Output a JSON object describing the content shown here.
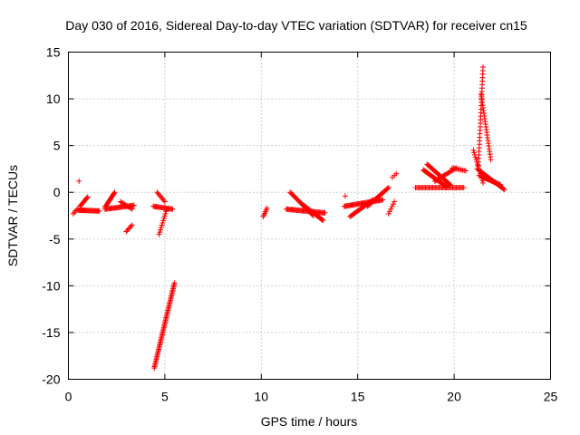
{
  "chart_data": {
    "type": "scatter",
    "title": "Day 030 of 2016, Sidereal Day-to-day VTEC variation (SDTVAR) for receiver cn15",
    "xlabel": "GPS time / hours",
    "ylabel": "SDTVAR / TECUs",
    "xlim": [
      0,
      25
    ],
    "ylim": [
      -20,
      15
    ],
    "xticks": [
      0,
      5,
      10,
      15,
      20,
      25
    ],
    "yticks": [
      15,
      10,
      5,
      0,
      -5,
      -10,
      -15,
      -20
    ],
    "grid": true,
    "marker": "+",
    "color": "#ff0000",
    "segments": [
      {
        "x0": 0.25,
        "x1": 0.45,
        "y0": -2.3,
        "y1": -1.8,
        "n": 4
      },
      {
        "x0": 0.55,
        "x1": 0.6,
        "y0": 1.2,
        "y1": 1.2,
        "n": 1
      },
      {
        "x0": 0.5,
        "x1": 1.6,
        "y0": -1.9,
        "y1": -2.0,
        "n": 25
      },
      {
        "x0": 0.6,
        "x1": 1.0,
        "y0": -1.5,
        "y1": -0.5,
        "n": 10
      },
      {
        "x0": 1.9,
        "x1": 2.4,
        "y0": -1.6,
        "y1": 0.0,
        "n": 16
      },
      {
        "x0": 1.9,
        "x1": 3.4,
        "y0": -1.8,
        "y1": -1.4,
        "n": 30
      },
      {
        "x0": 2.7,
        "x1": 3.3,
        "y0": -1.0,
        "y1": -1.8,
        "n": 10
      },
      {
        "x0": 3.0,
        "x1": 3.3,
        "y0": -4.2,
        "y1": -3.5,
        "n": 6
      },
      {
        "x0": 4.45,
        "x1": 5.5,
        "y0": -18.8,
        "y1": -9.7,
        "n": 60
      },
      {
        "x0": 4.4,
        "x1": 5.4,
        "y0": -1.5,
        "y1": -1.8,
        "n": 20
      },
      {
        "x0": 4.6,
        "x1": 5.0,
        "y0": 0.0,
        "y1": -1.0,
        "n": 8
      },
      {
        "x0": 4.7,
        "x1": 5.1,
        "y0": -4.5,
        "y1": -1.8,
        "n": 12
      },
      {
        "x0": 10.1,
        "x1": 10.3,
        "y0": -2.6,
        "y1": -1.7,
        "n": 6
      },
      {
        "x0": 11.3,
        "x1": 13.3,
        "y0": -1.8,
        "y1": -2.2,
        "n": 40
      },
      {
        "x0": 11.5,
        "x1": 12.7,
        "y0": 0.0,
        "y1": -2.5,
        "n": 25
      },
      {
        "x0": 12.2,
        "x1": 13.2,
        "y0": -1.4,
        "y1": -3.0,
        "n": 25
      },
      {
        "x0": 14.3,
        "x1": 16.3,
        "y0": -1.5,
        "y1": -0.8,
        "n": 40
      },
      {
        "x0": 14.6,
        "x1": 15.8,
        "y0": -2.6,
        "y1": -0.8,
        "n": 25
      },
      {
        "x0": 15.5,
        "x1": 16.6,
        "y0": -1.5,
        "y1": 0.5,
        "n": 25
      },
      {
        "x0": 14.35,
        "x1": 14.45,
        "y0": -0.4,
        "y1": -0.4,
        "n": 1
      },
      {
        "x0": 16.6,
        "x1": 16.9,
        "y0": -2.3,
        "y1": -1.0,
        "n": 6
      },
      {
        "x0": 16.8,
        "x1": 17.0,
        "y0": 1.6,
        "y1": 2.0,
        "n": 3
      },
      {
        "x0": 18.0,
        "x1": 20.5,
        "y0": 0.5,
        "y1": 0.5,
        "n": 40
      },
      {
        "x0": 18.4,
        "x1": 19.6,
        "y0": 2.4,
        "y1": 0.6,
        "n": 30
      },
      {
        "x0": 18.6,
        "x1": 19.8,
        "y0": 3.0,
        "y1": 0.8,
        "n": 30
      },
      {
        "x0": 19.0,
        "x1": 20.1,
        "y0": 1.2,
        "y1": 2.6,
        "n": 20
      },
      {
        "x0": 19.9,
        "x1": 20.6,
        "y0": 2.6,
        "y1": 2.3,
        "n": 10
      },
      {
        "x0": 21.25,
        "x1": 21.5,
        "y0": 2.5,
        "y1": 13.4,
        "n": 30
      },
      {
        "x0": 21.4,
        "x1": 21.9,
        "y0": 10.5,
        "y1": 3.5,
        "n": 25
      },
      {
        "x0": 21.0,
        "x1": 21.5,
        "y0": 4.5,
        "y1": 1.0,
        "n": 15
      },
      {
        "x0": 21.2,
        "x1": 22.6,
        "y0": 2.5,
        "y1": 0.3,
        "n": 30
      },
      {
        "x0": 21.3,
        "x1": 22.4,
        "y0": 1.8,
        "y1": 0.8,
        "n": 25
      }
    ]
  }
}
